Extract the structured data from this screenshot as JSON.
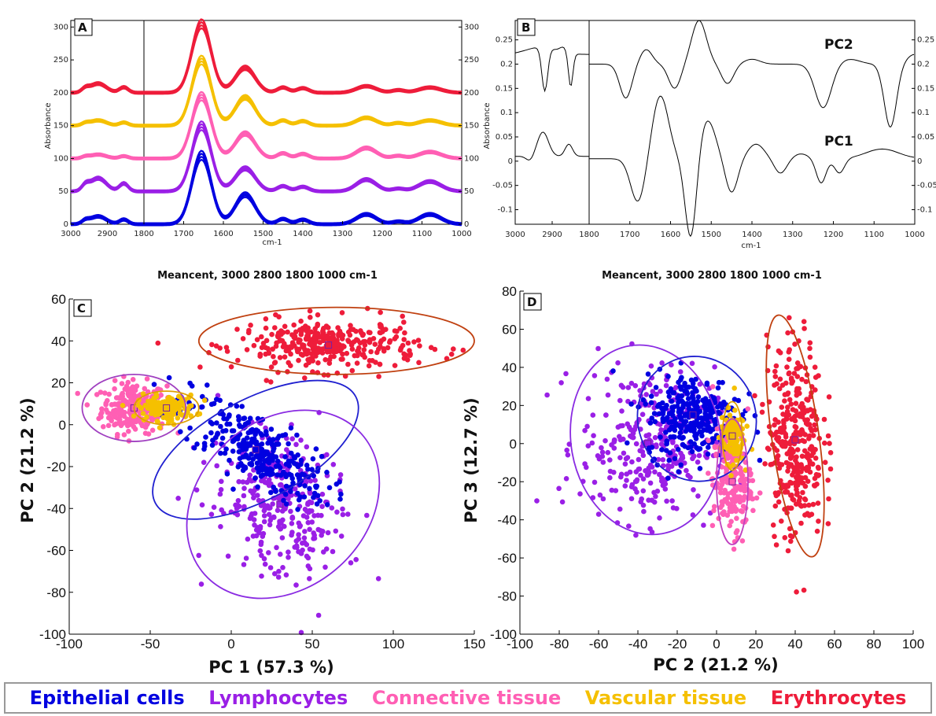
{
  "legend": {
    "epithelial": {
      "label": "Epithelial cells",
      "color": "#0000e0"
    },
    "lymphocytes": {
      "label": "Lymphocytes",
      "color": "#9a1fe6"
    },
    "connective": {
      "label": "Connective tissue",
      "color": "#ff5fb4"
    },
    "vascular": {
      "label": "Vascular tissue",
      "color": "#f5c000"
    },
    "erythrocytes": {
      "label": "Erythrocytes",
      "color": "#ee1c3a"
    }
  },
  "chart_data": [
    {
      "panel": "A",
      "type": "line",
      "ylabel": "Absorbance",
      "xlabel": "cm-1",
      "x_ticks": [
        3000,
        2900,
        1800,
        1700,
        1600,
        1500,
        1400,
        1300,
        1200,
        1100,
        1000
      ],
      "y_ticks": [
        0,
        50,
        100,
        150,
        200,
        250,
        300
      ],
      "ylim": [
        0,
        310
      ],
      "axis_break": [
        2800,
        1800
      ],
      "series": [
        {
          "name": "Erythrocytes",
          "offset": 200,
          "color": "#ee1c3a"
        },
        {
          "name": "Vascular tissue",
          "offset": 150,
          "color": "#f5c000"
        },
        {
          "name": "Connective tissue",
          "offset": 100,
          "color": "#ff5fb4"
        },
        {
          "name": "Lymphocytes",
          "offset": 50,
          "color": "#9a1fe6"
        },
        {
          "name": "Epithelial cells",
          "offset": 0,
          "color": "#0000e0"
        }
      ],
      "caption": "Meancent, 3000  2800  1800  1000 cm-1"
    },
    {
      "panel": "B",
      "type": "line",
      "ylabel": "Absorbance",
      "xlabel": "cm-1",
      "x_ticks": [
        3000,
        2900,
        1800,
        1700,
        1600,
        1500,
        1400,
        1300,
        1200,
        1100,
        1000
      ],
      "y_ticks_left": [
        "0.25",
        "0.2",
        "0.15",
        "0.1",
        "0.05",
        "0",
        "-0.05",
        "-0.1"
      ],
      "y_ticks_right": [
        "0.25",
        "0.2",
        "0.15",
        "0.1",
        "0.05",
        "0",
        "-0.05",
        "-0.1"
      ],
      "ylim": [
        -0.13,
        0.29
      ],
      "axis_break": [
        2800,
        1800
      ],
      "series": [
        {
          "name": "PC2",
          "color": "#000000"
        },
        {
          "name": "PC1",
          "color": "#000000"
        }
      ],
      "caption": "Meancent, 3000  2800  1800  1000 cm-1"
    },
    {
      "panel": "C",
      "type": "scatter",
      "xlabel": "PC 1 (57.3 %)",
      "ylabel": "PC 2 (21.2 %)",
      "xlim": [
        -100,
        150
      ],
      "ylim": [
        -100,
        60
      ],
      "x_ticks": [
        "-100",
        "-50",
        "0",
        "50",
        "100",
        "150"
      ],
      "y_ticks": [
        "60",
        "40",
        "20",
        "0",
        "-20",
        "-40",
        "-60",
        "-80",
        "-100"
      ],
      "clusters": [
        {
          "name": "Connective tissue",
          "center": [
            -60,
            8
          ],
          "sd": [
            10,
            6
          ],
          "rot": 0,
          "n": 260,
          "color": "#ff5fb4"
        },
        {
          "name": "Lymphocytes",
          "center": [
            30,
            -38
          ],
          "sd": [
            22,
            15
          ],
          "rot": -40,
          "n": 320,
          "color": "#9a1fe6"
        },
        {
          "name": "Epithelial cells",
          "center": [
            15,
            -12
          ],
          "sd": [
            24,
            8
          ],
          "rot": -25,
          "n": 300,
          "color": "#0000e0"
        },
        {
          "name": "Vascular tissue",
          "center": [
            -40,
            8
          ],
          "sd": [
            9,
            3
          ],
          "rot": 0,
          "n": 140,
          "color": "#f5c000"
        },
        {
          "name": "Erythrocytes",
          "center": [
            60,
            38
          ],
          "sd": [
            28,
            6
          ],
          "rot": 0,
          "n": 340,
          "color": "#ee1c3a"
        }
      ],
      "ellipses": [
        {
          "cluster": "Connective tissue",
          "cx": -60,
          "cy": 8,
          "rx": 32,
          "ry": 16,
          "rot": 0,
          "color": "#a040c0"
        },
        {
          "cluster": "Vascular tissue",
          "cx": -40,
          "cy": 8,
          "rx": 20,
          "ry": 8,
          "rot": 0,
          "color": "#e0a000"
        },
        {
          "cluster": "Epithelial cells",
          "cx": 15,
          "cy": -12,
          "rx": 70,
          "ry": 24,
          "rot": -28,
          "color": "#2020d0"
        },
        {
          "cluster": "Lymphocytes",
          "cx": 32,
          "cy": -38,
          "rx": 65,
          "ry": 40,
          "rot": -42,
          "color": "#8a2be2"
        },
        {
          "cluster": "Erythrocytes",
          "cx": 65,
          "cy": 40,
          "rx": 85,
          "ry": 16,
          "rot": 0,
          "color": "#c04010"
        }
      ]
    },
    {
      "panel": "D",
      "type": "scatter",
      "xlabel": "PC 2 (21.2 %)",
      "ylabel": "PC 3 (12.7 %)",
      "xlim": [
        -100,
        100
      ],
      "ylim": [
        -100,
        80
      ],
      "x_ticks": [
        "-100",
        "-80",
        "-60",
        "-40",
        "-20",
        "0",
        "20",
        "40",
        "60",
        "80",
        "100"
      ],
      "y_ticks": [
        "80",
        "60",
        "40",
        "20",
        "0",
        "-20",
        "-40",
        "-60",
        "-80",
        "-100"
      ],
      "clusters": [
        {
          "name": "Lymphocytes",
          "center": [
            -35,
            0
          ],
          "sd": [
            17,
            20
          ],
          "rot": 0,
          "n": 320,
          "color": "#9a1fe6"
        },
        {
          "name": "Epithelial cells",
          "center": [
            -12,
            15
          ],
          "sd": [
            12,
            11
          ],
          "rot": 0,
          "n": 300,
          "color": "#0000e0"
        },
        {
          "name": "Connective tissue",
          "center": [
            8,
            -20
          ],
          "sd": [
            5,
            14
          ],
          "rot": 0,
          "n": 200,
          "color": "#ff5fb4"
        },
        {
          "name": "Vascular tissue",
          "center": [
            8,
            4
          ],
          "sd": [
            3,
            7
          ],
          "rot": 0,
          "n": 120,
          "color": "#f5c000"
        },
        {
          "name": "Erythrocytes",
          "center": [
            40,
            2
          ],
          "sd": [
            7,
            26
          ],
          "rot": 0,
          "n": 340,
          "color": "#ee1c3a"
        }
      ],
      "ellipses": [
        {
          "cluster": "Lymphocytes",
          "cx": -36,
          "cy": 2,
          "rx": 38,
          "ry": 50,
          "rot": -10,
          "color": "#8a2be2"
        },
        {
          "cluster": "Epithelial cells",
          "cx": -10,
          "cy": 13,
          "rx": 30,
          "ry": 33,
          "rot": -20,
          "color": "#2020d0"
        },
        {
          "cluster": "Connective tissue",
          "cx": 8,
          "cy": -20,
          "rx": 8,
          "ry": 33,
          "rot": 0,
          "color": "#c040c0"
        },
        {
          "cluster": "Vascular tissue",
          "cx": 8,
          "cy": 4,
          "rx": 5,
          "ry": 18,
          "rot": 0,
          "color": "#e0a000"
        },
        {
          "cluster": "Erythrocytes",
          "cx": 40,
          "cy": 4,
          "rx": 12,
          "ry": 64,
          "rot": -8,
          "color": "#c04010"
        }
      ]
    }
  ]
}
